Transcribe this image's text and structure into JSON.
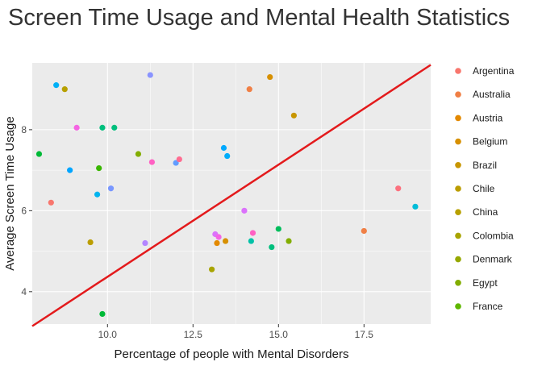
{
  "chart_data": {
    "type": "scatter",
    "title": "Screen Time Usage and Mental Health Statistics",
    "xlabel": "Percentage of people with Mental Disorders",
    "ylabel": "Average Screen Time Usage",
    "xlim": [
      7.8,
      19.45
    ],
    "ylim": [
      3.2,
      9.65
    ],
    "x_ticks": [
      10.0,
      12.5,
      15.0,
      17.5
    ],
    "x_tick_labels": [
      "10.0",
      "12.5",
      "15.0",
      "17.5"
    ],
    "y_ticks": [
      4,
      6,
      8
    ],
    "y_tick_labels": [
      "4",
      "6",
      "8"
    ],
    "grid": true,
    "legend_position": "right",
    "series": [
      {
        "name": "Argentina",
        "color": "#F8766D"
      },
      {
        "name": "Australia",
        "color": "#F07F45"
      },
      {
        "name": "Austria",
        "color": "#E38900"
      },
      {
        "name": "Belgium",
        "color": "#D79001"
      },
      {
        "name": "Brazil",
        "color": "#C89600"
      },
      {
        "name": "Chile",
        "color": "#BB9D00"
      },
      {
        "name": "China",
        "color": "#B7A000"
      },
      {
        "name": "Colombia",
        "color": "#A8A400"
      },
      {
        "name": "Denmark",
        "color": "#96A800"
      },
      {
        "name": "Egypt",
        "color": "#82AD00"
      },
      {
        "name": "France",
        "color": "#5FB700"
      }
    ],
    "points": [
      {
        "x": 8.5,
        "y": 9.1,
        "color": "#00B0F6"
      },
      {
        "x": 8.75,
        "y": 9.0,
        "color": "#B7A000"
      },
      {
        "x": 11.25,
        "y": 9.35,
        "color": "#8A94FF"
      },
      {
        "x": 14.15,
        "y": 9.0,
        "color": "#F07F45"
      },
      {
        "x": 14.75,
        "y": 9.3,
        "color": "#D79001"
      },
      {
        "x": 15.45,
        "y": 8.35,
        "color": "#C89600"
      },
      {
        "x": 9.1,
        "y": 8.05,
        "color": "#F564E3"
      },
      {
        "x": 9.85,
        "y": 8.05,
        "color": "#00BF7D"
      },
      {
        "x": 10.2,
        "y": 8.05,
        "color": "#00BF7D"
      },
      {
        "x": 8.0,
        "y": 7.4,
        "color": "#00BA38"
      },
      {
        "x": 10.9,
        "y": 7.4,
        "color": "#82AD00"
      },
      {
        "x": 9.75,
        "y": 7.05,
        "color": "#39B600"
      },
      {
        "x": 8.9,
        "y": 7.0,
        "color": "#00A5FF"
      },
      {
        "x": 11.3,
        "y": 7.2,
        "color": "#FF61C3"
      },
      {
        "x": 12.0,
        "y": 7.18,
        "color": "#619CFF"
      },
      {
        "x": 12.1,
        "y": 7.27,
        "color": "#FF6C91"
      },
      {
        "x": 13.4,
        "y": 7.55,
        "color": "#00A9FF"
      },
      {
        "x": 13.5,
        "y": 7.35,
        "color": "#00ADFA"
      },
      {
        "x": 8.35,
        "y": 6.2,
        "color": "#F8766D"
      },
      {
        "x": 9.7,
        "y": 6.4,
        "color": "#00B4EF"
      },
      {
        "x": 10.1,
        "y": 6.55,
        "color": "#7997FF"
      },
      {
        "x": 14.0,
        "y": 6.0,
        "color": "#DB72FB"
      },
      {
        "x": 18.5,
        "y": 6.55,
        "color": "#FC717F"
      },
      {
        "x": 19.0,
        "y": 6.1,
        "color": "#00BCD8"
      },
      {
        "x": 17.5,
        "y": 5.5,
        "color": "#F07F45"
      },
      {
        "x": 15.0,
        "y": 5.55,
        "color": "#00BD5C"
      },
      {
        "x": 14.25,
        "y": 5.45,
        "color": "#FF61C3"
      },
      {
        "x": 13.15,
        "y": 5.42,
        "color": "#DB72FB"
      },
      {
        "x": 13.25,
        "y": 5.35,
        "color": "#F564E3"
      },
      {
        "x": 13.2,
        "y": 5.2,
        "color": "#E38900"
      },
      {
        "x": 13.45,
        "y": 5.25,
        "color": "#D79001"
      },
      {
        "x": 14.2,
        "y": 5.25,
        "color": "#00C1A7"
      },
      {
        "x": 15.3,
        "y": 5.25,
        "color": "#82AD00"
      },
      {
        "x": 14.8,
        "y": 5.1,
        "color": "#00BF7D"
      },
      {
        "x": 11.1,
        "y": 5.2,
        "color": "#B385FF"
      },
      {
        "x": 9.5,
        "y": 5.22,
        "color": "#BB9D00"
      },
      {
        "x": 13.05,
        "y": 4.55,
        "color": "#A8A400"
      },
      {
        "x": 9.85,
        "y": 3.45,
        "color": "#00BA38"
      }
    ],
    "trendline": {
      "color": "#E31A1C",
      "x": [
        7.8,
        19.45
      ],
      "y": [
        3.15,
        9.6
      ]
    }
  }
}
